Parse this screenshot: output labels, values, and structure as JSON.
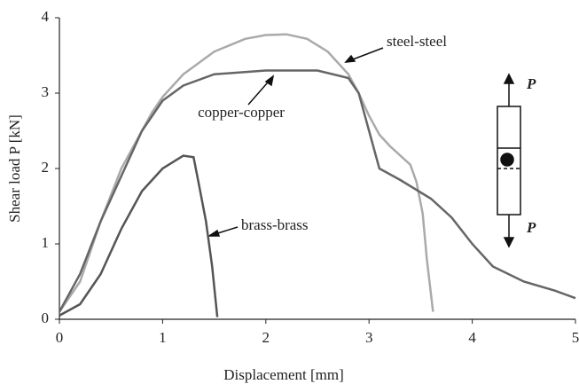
{
  "chart_data": {
    "type": "line",
    "xlabel": "Displacement [mm]",
    "ylabel": "Shear load P [kN]",
    "xlim": [
      0,
      5
    ],
    "xticks": [
      0,
      1,
      2,
      3,
      4,
      5
    ],
    "ylim": [
      0,
      4
    ],
    "yticks": [
      0,
      1,
      2,
      3,
      4
    ],
    "series": [
      {
        "name": "steel-steel",
        "color": "#aaaaaa",
        "x": [
          0,
          0.2,
          0.4,
          0.6,
          0.8,
          0.9,
          1.0,
          1.2,
          1.5,
          1.8,
          2.0,
          2.2,
          2.4,
          2.6,
          2.8,
          2.9,
          3.0,
          3.1,
          3.2,
          3.4,
          3.46,
          3.52,
          3.56,
          3.62
        ],
        "values": [
          0.1,
          0.5,
          1.3,
          2.0,
          2.5,
          2.75,
          2.95,
          3.25,
          3.55,
          3.72,
          3.77,
          3.78,
          3.72,
          3.55,
          3.25,
          3.0,
          2.7,
          2.45,
          2.3,
          2.05,
          1.82,
          1.4,
          0.8,
          0.1
        ]
      },
      {
        "name": "copper-copper",
        "color": "#666666",
        "x": [
          0,
          0.2,
          0.4,
          0.6,
          0.8,
          1.0,
          1.2,
          1.5,
          2.0,
          2.5,
          2.8,
          2.9,
          3.0,
          3.1,
          3.3,
          3.6,
          3.8,
          4.0,
          4.2,
          4.5,
          4.8,
          5.0
        ],
        "values": [
          0.1,
          0.6,
          1.3,
          1.9,
          2.5,
          2.9,
          3.1,
          3.25,
          3.3,
          3.3,
          3.2,
          3.0,
          2.5,
          2.0,
          1.85,
          1.6,
          1.35,
          1.0,
          0.7,
          0.5,
          0.38,
          0.28
        ]
      },
      {
        "name": "brass-brass",
        "color": "#555555",
        "x": [
          0,
          0.2,
          0.4,
          0.6,
          0.8,
          1.0,
          1.2,
          1.3,
          1.35,
          1.42,
          1.48,
          1.53
        ],
        "values": [
          0.05,
          0.2,
          0.6,
          1.2,
          1.7,
          2.0,
          2.17,
          2.15,
          1.8,
          1.3,
          0.7,
          0.03
        ]
      }
    ],
    "inset": {
      "labels": [
        "P",
        "P"
      ]
    }
  }
}
